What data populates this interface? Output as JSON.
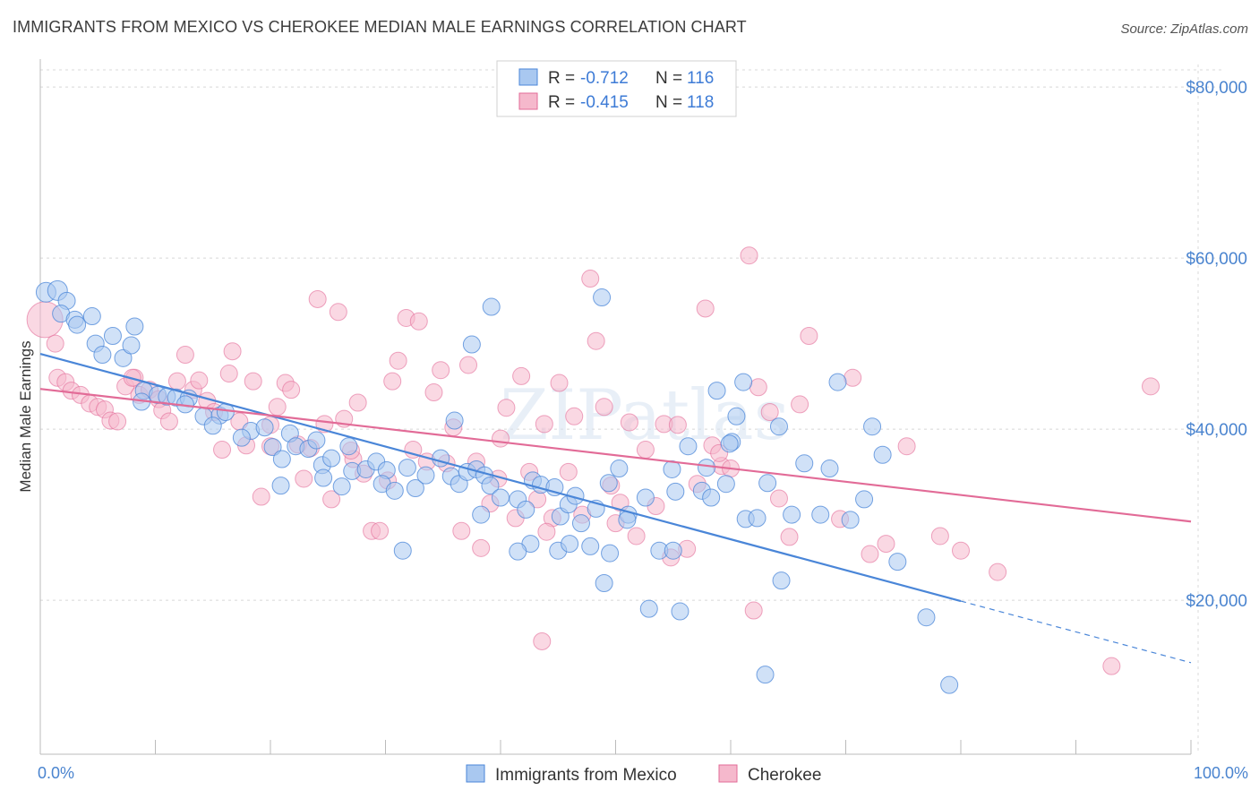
{
  "title": "IMMIGRANTS FROM MEXICO VS CHEROKEE MEDIAN MALE EARNINGS CORRELATION CHART",
  "source": "Source: ZipAtlas.com",
  "watermark": "ZIPatlas",
  "colors": {
    "mexico": "#4a86d8",
    "mexico_fill": "#a9c8f0",
    "cherokee": "#e26b97",
    "cherokee_fill": "#f5b8cc",
    "tick": "#4a84cf",
    "grid": "#d8d8d8"
  },
  "legend": {
    "r_label": "R =",
    "n_label": "N =",
    "rows": [
      {
        "r": "-0.712",
        "n": "116"
      },
      {
        "r": "-0.415",
        "n": "118"
      }
    ]
  },
  "chart_data": {
    "type": "scatter",
    "title": "IMMIGRANTS FROM MEXICO VS CHEROKEE MEDIAN MALE EARNINGS CORRELATION CHART",
    "xlabel": "",
    "ylabel": "Median Male Earnings",
    "xlim": [
      0,
      100
    ],
    "ylim": [
      2000,
      82000
    ],
    "x_tick_labels": [
      "0.0%",
      "100.0%"
    ],
    "y_ticks": [
      {
        "value": 20000,
        "label": "$20,000"
      },
      {
        "value": 40000,
        "label": "$40,000"
      },
      {
        "value": 60000,
        "label": "$60,000"
      },
      {
        "value": 80000,
        "label": "$80,000"
      }
    ],
    "grid": true,
    "legend_position": "top-center",
    "series": [
      {
        "name": "Immigrants from Mexico",
        "r": -0.712,
        "n": 116,
        "trend": {
          "x0": 0,
          "y0": 48800,
          "x1": 80,
          "y1": 19900,
          "dash_to_x": 100,
          "dash_to_y": 12700
        },
        "points": [
          [
            0.5,
            56000
          ],
          [
            1.5,
            56200
          ],
          [
            2.3,
            55000
          ],
          [
            1.8,
            53500
          ],
          [
            3.0,
            52800
          ],
          [
            4.5,
            53200
          ],
          [
            3.2,
            52200
          ],
          [
            8.2,
            52000
          ],
          [
            6.3,
            50900
          ],
          [
            7.2,
            48300
          ],
          [
            4.8,
            50000
          ],
          [
            5.4,
            48700
          ],
          [
            7.9,
            49800
          ],
          [
            9.0,
            44500
          ],
          [
            8.8,
            43200
          ],
          [
            10.2,
            44000
          ],
          [
            11.0,
            43800
          ],
          [
            11.8,
            43700
          ],
          [
            12.9,
            43600
          ],
          [
            12.6,
            42900
          ],
          [
            14.2,
            41500
          ],
          [
            15.6,
            41600
          ],
          [
            15.0,
            40400
          ],
          [
            16.1,
            42000
          ],
          [
            18.3,
            39800
          ],
          [
            17.5,
            39000
          ],
          [
            19.5,
            40200
          ],
          [
            20.2,
            37900
          ],
          [
            21.7,
            39500
          ],
          [
            22.2,
            38000
          ],
          [
            21.0,
            36500
          ],
          [
            23.3,
            37700
          ],
          [
            24.0,
            38700
          ],
          [
            24.5,
            35800
          ],
          [
            25.3,
            36600
          ],
          [
            26.8,
            38000
          ],
          [
            27.1,
            35100
          ],
          [
            28.3,
            35300
          ],
          [
            29.2,
            36200
          ],
          [
            30.1,
            35200
          ],
          [
            29.7,
            33600
          ],
          [
            30.8,
            32800
          ],
          [
            31.9,
            35500
          ],
          [
            32.6,
            33100
          ],
          [
            33.5,
            34600
          ],
          [
            34.8,
            36600
          ],
          [
            35.7,
            34500
          ],
          [
            36.4,
            33600
          ],
          [
            37.1,
            35000
          ],
          [
            37.9,
            35300
          ],
          [
            38.3,
            30000
          ],
          [
            38.6,
            34600
          ],
          [
            39.1,
            33400
          ],
          [
            40.0,
            32000
          ],
          [
            41.5,
            31800
          ],
          [
            42.2,
            30600
          ],
          [
            42.8,
            34000
          ],
          [
            43.5,
            33500
          ],
          [
            44.7,
            33200
          ],
          [
            45.2,
            29800
          ],
          [
            45.9,
            31200
          ],
          [
            46.5,
            32200
          ],
          [
            47.0,
            29000
          ],
          [
            48.3,
            30700
          ],
          [
            49.4,
            33700
          ],
          [
            50.3,
            35400
          ],
          [
            51.1,
            30000
          ],
          [
            52.6,
            32000
          ],
          [
            53.8,
            25800
          ],
          [
            54.9,
            35300
          ],
          [
            55.2,
            32700
          ],
          [
            56.3,
            38000
          ],
          [
            57.5,
            32800
          ],
          [
            58.3,
            32000
          ],
          [
            59.6,
            33600
          ],
          [
            60.1,
            38500
          ],
          [
            61.3,
            29500
          ],
          [
            62.3,
            29600
          ],
          [
            63.2,
            33700
          ],
          [
            64.4,
            22300
          ],
          [
            65.3,
            30000
          ],
          [
            66.4,
            36000
          ],
          [
            67.8,
            30000
          ],
          [
            68.6,
            35400
          ],
          [
            69.3,
            45500
          ],
          [
            70.4,
            29400
          ],
          [
            71.6,
            31800
          ],
          [
            72.3,
            40300
          ],
          [
            73.2,
            37000
          ],
          [
            74.5,
            24500
          ],
          [
            77.0,
            18000
          ],
          [
            58.8,
            44500
          ],
          [
            59.9,
            38300
          ],
          [
            48.8,
            55400
          ],
          [
            51.0,
            29400
          ],
          [
            45.0,
            25800
          ],
          [
            46.0,
            26600
          ],
          [
            42.6,
            26600
          ],
          [
            36.0,
            41000
          ],
          [
            37.5,
            49900
          ],
          [
            39.2,
            54300
          ],
          [
            31.5,
            25800
          ],
          [
            52.9,
            19000
          ],
          [
            55.6,
            18700
          ],
          [
            63.0,
            11300
          ],
          [
            79.0,
            10100
          ],
          [
            41.5,
            25700
          ],
          [
            55.0,
            25800
          ],
          [
            49.5,
            25500
          ],
          [
            26.2,
            33300
          ],
          [
            20.9,
            33400
          ],
          [
            24.6,
            34300
          ],
          [
            47.8,
            26300
          ],
          [
            49.0,
            22000
          ],
          [
            57.9,
            35500
          ],
          [
            60.5,
            41500
          ],
          [
            61.1,
            45500
          ],
          [
            64.2,
            40300
          ]
        ]
      },
      {
        "name": "Cherokee",
        "r": -0.415,
        "n": 118,
        "trend": {
          "x0": 0,
          "y0": 44700,
          "x1": 100,
          "y1": 29200
        },
        "points": [
          [
            0.4,
            52800
          ],
          [
            1.3,
            50000
          ],
          [
            1.5,
            46000
          ],
          [
            2.2,
            45500
          ],
          [
            2.7,
            44500
          ],
          [
            3.5,
            44000
          ],
          [
            4.3,
            43000
          ],
          [
            5.0,
            42600
          ],
          [
            5.6,
            42300
          ],
          [
            6.1,
            41000
          ],
          [
            6.7,
            40900
          ],
          [
            7.4,
            45000
          ],
          [
            8.2,
            46000
          ],
          [
            8.6,
            44000
          ],
          [
            9.5,
            44600
          ],
          [
            10.3,
            43500
          ],
          [
            10.6,
            42200
          ],
          [
            11.2,
            40900
          ],
          [
            11.9,
            45600
          ],
          [
            12.6,
            48700
          ],
          [
            13.3,
            44600
          ],
          [
            13.8,
            45700
          ],
          [
            14.5,
            43300
          ],
          [
            15.1,
            42000
          ],
          [
            15.8,
            37600
          ],
          [
            16.4,
            46500
          ],
          [
            16.7,
            49100
          ],
          [
            17.3,
            40900
          ],
          [
            17.9,
            38100
          ],
          [
            18.5,
            45600
          ],
          [
            19.2,
            32100
          ],
          [
            20.0,
            40500
          ],
          [
            20.6,
            42600
          ],
          [
            21.3,
            45400
          ],
          [
            21.8,
            44600
          ],
          [
            22.4,
            38200
          ],
          [
            22.9,
            34200
          ],
          [
            23.5,
            37800
          ],
          [
            24.1,
            55200
          ],
          [
            24.7,
            40600
          ],
          [
            25.3,
            31800
          ],
          [
            25.9,
            53700
          ],
          [
            26.4,
            41200
          ],
          [
            27.2,
            36500
          ],
          [
            27.6,
            43100
          ],
          [
            28.1,
            34800
          ],
          [
            28.8,
            28100
          ],
          [
            29.5,
            28100
          ],
          [
            30.2,
            34000
          ],
          [
            30.6,
            45600
          ],
          [
            31.1,
            48000
          ],
          [
            31.8,
            53000
          ],
          [
            32.4,
            37600
          ],
          [
            32.9,
            52600
          ],
          [
            33.6,
            36200
          ],
          [
            34.2,
            44300
          ],
          [
            34.8,
            46900
          ],
          [
            35.3,
            36000
          ],
          [
            35.9,
            40200
          ],
          [
            36.6,
            28100
          ],
          [
            37.2,
            47500
          ],
          [
            37.9,
            36200
          ],
          [
            38.3,
            26100
          ],
          [
            39.1,
            31300
          ],
          [
            39.8,
            34200
          ],
          [
            40.5,
            42500
          ],
          [
            41.3,
            29600
          ],
          [
            41.8,
            46200
          ],
          [
            42.5,
            35000
          ],
          [
            43.2,
            31800
          ],
          [
            43.8,
            40600
          ],
          [
            44.5,
            29600
          ],
          [
            45.1,
            45400
          ],
          [
            45.9,
            35000
          ],
          [
            46.4,
            41500
          ],
          [
            47.1,
            30000
          ],
          [
            47.8,
            57600
          ],
          [
            48.3,
            50300
          ],
          [
            49.0,
            42600
          ],
          [
            49.6,
            33400
          ],
          [
            50.4,
            31400
          ],
          [
            51.2,
            40800
          ],
          [
            51.8,
            27500
          ],
          [
            52.6,
            37600
          ],
          [
            53.5,
            31000
          ],
          [
            54.2,
            40600
          ],
          [
            54.8,
            25000
          ],
          [
            55.4,
            40500
          ],
          [
            56.2,
            26000
          ],
          [
            57.1,
            33600
          ],
          [
            57.8,
            54100
          ],
          [
            58.4,
            38100
          ],
          [
            59.2,
            35700
          ],
          [
            60.0,
            35400
          ],
          [
            61.6,
            60300
          ],
          [
            62.4,
            44900
          ],
          [
            63.4,
            42000
          ],
          [
            64.2,
            31900
          ],
          [
            65.1,
            27400
          ],
          [
            66.0,
            42900
          ],
          [
            66.8,
            50900
          ],
          [
            69.5,
            29500
          ],
          [
            70.6,
            46000
          ],
          [
            72.1,
            25400
          ],
          [
            73.5,
            26600
          ],
          [
            75.3,
            38000
          ],
          [
            78.2,
            27500
          ],
          [
            80.0,
            25800
          ],
          [
            83.2,
            23300
          ],
          [
            93.1,
            12300
          ],
          [
            96.5,
            45000
          ],
          [
            8.0,
            46000
          ],
          [
            20.0,
            38000
          ],
          [
            27.0,
            37500
          ],
          [
            40.0,
            38900
          ],
          [
            44.0,
            28000
          ],
          [
            50.0,
            29000
          ],
          [
            43.6,
            15200
          ],
          [
            59.0,
            37200
          ],
          [
            62.0,
            18800
          ]
        ]
      }
    ]
  },
  "bottom_legend": [
    "Immigrants from Mexico",
    "Cherokee"
  ]
}
